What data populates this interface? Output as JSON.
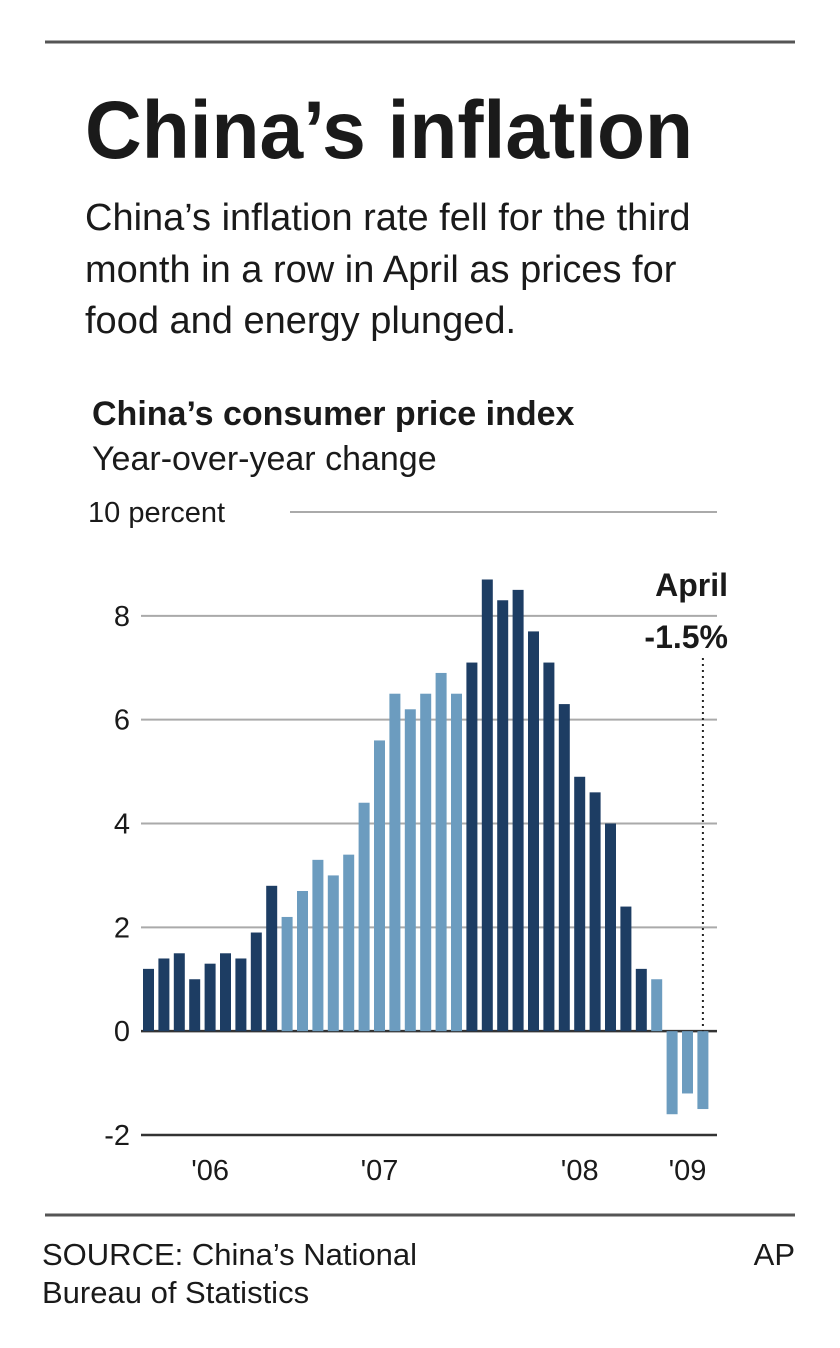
{
  "chart_data": {
    "type": "bar",
    "title": "China’s inflation",
    "subtitle": [
      "China’s inflation rate fell for the third",
      "month in a row in April as prices for",
      "food and energy plunged."
    ],
    "chart_title": "China’s consumer price index",
    "chart_subtitle": "Year-over-year change",
    "categories": [
      null,
      null,
      null,
      null,
      "'06",
      null,
      null,
      null,
      null,
      null,
      null,
      null,
      null,
      null,
      null,
      "'07",
      null,
      null,
      null,
      null,
      null,
      null,
      null,
      null,
      null,
      null,
      null,
      null,
      "'08",
      null,
      null,
      null,
      null,
      null,
      null,
      "'09",
      null
    ],
    "values": [
      1.2,
      1.4,
      1.5,
      1.0,
      1.3,
      1.5,
      1.4,
      1.9,
      2.8,
      2.2,
      2.7,
      3.3,
      3.0,
      3.4,
      4.4,
      5.6,
      6.5,
      6.2,
      6.5,
      6.9,
      6.5,
      7.1,
      8.7,
      8.3,
      8.5,
      7.7,
      7.1,
      6.3,
      4.9,
      4.6,
      4.0,
      2.4,
      1.2,
      1.0,
      -1.6,
      -1.2,
      -1.5
    ],
    "colors": [
      "#1d3d63",
      "#1d3d63",
      "#1d3d63",
      "#1d3d63",
      "#1d3d63",
      "#1d3d63",
      "#1d3d63",
      "#1d3d63",
      "#1d3d63",
      "#6c9cbf",
      "#6c9cbf",
      "#6c9cbf",
      "#6c9cbf",
      "#6c9cbf",
      "#6c9cbf",
      "#6c9cbf",
      "#6c9cbf",
      "#6c9cbf",
      "#6c9cbf",
      "#6c9cbf",
      "#6c9cbf",
      "#1d3d63",
      "#1d3d63",
      "#1d3d63",
      "#1d3d63",
      "#1d3d63",
      "#1d3d63",
      "#1d3d63",
      "#1d3d63",
      "#1d3d63",
      "#1d3d63",
      "#1d3d63",
      "#1d3d63",
      "#6c9cbf",
      "#6c9cbf",
      "#6c9cbf",
      "#6c9cbf"
    ],
    "ylim": [
      -2,
      10
    ],
    "yticks": [
      -2,
      0,
      2,
      4,
      6,
      8,
      {
        "value": 10,
        "label": "10 percent"
      }
    ],
    "grid": true,
    "annotation": [
      "April",
      "-1.5%"
    ],
    "source": [
      "SOURCE: China’s National",
      "Bureau of Statistics"
    ],
    "credit": "AP"
  }
}
